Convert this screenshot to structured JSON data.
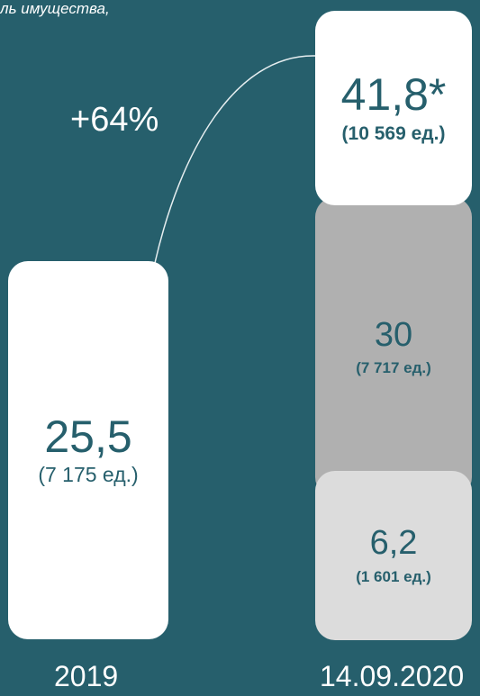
{
  "header_note": "ль имущества,",
  "chart_data": {
    "type": "bar",
    "categories": [
      "2019",
      "14.09.2020"
    ],
    "growth_label": "+64%",
    "bars": [
      {
        "category": "2019",
        "value_label": "25,5",
        "units_label": "(7 175 ед.)",
        "value": 25.5,
        "units": 7175
      },
      {
        "category": "14.09.2020",
        "value_label": "41,8*",
        "units_label": "(10 569 ед.)",
        "value": 41.8,
        "units": 10569,
        "segments": [
          {
            "value_label": "30",
            "units_label": "(7 717 ед.)",
            "value": 30,
            "units": 7717,
            "color": "#b0b0b0"
          },
          {
            "value_label": "6,2",
            "units_label": "(1 601 ед.)",
            "value": 6.2,
            "units": 1601,
            "color": "#dcdcdc"
          }
        ]
      }
    ],
    "colors": {
      "background": "#265f6c",
      "bar": "#ffffff",
      "text": "#265f6c"
    }
  }
}
